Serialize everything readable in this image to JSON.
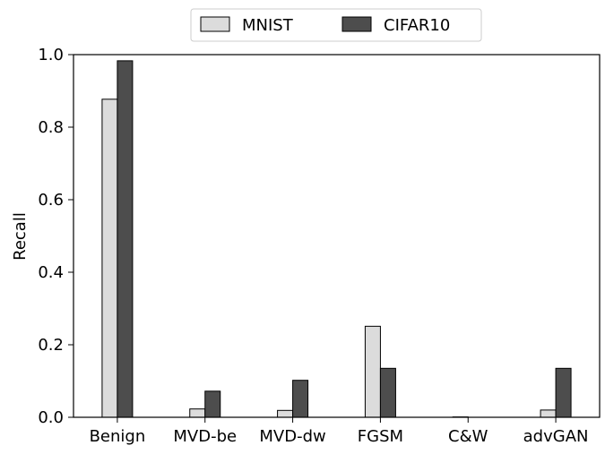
{
  "chart_data": {
    "type": "bar",
    "title": "",
    "xlabel": "",
    "ylabel": "Recall",
    "ylim": [
      0,
      1.0
    ],
    "yticks": [
      "0.0",
      "0.2",
      "0.4",
      "0.6",
      "0.8",
      "1.0"
    ],
    "grid": false,
    "legend_position": "top-center",
    "categories": [
      "Benign",
      "MVD-be",
      "MVD-dw",
      "FGSM",
      "C&W",
      "advGAN"
    ],
    "series": [
      {
        "name": "MNIST",
        "color": "#dcdcdc",
        "values": [
          0.877,
          0.023,
          0.019,
          0.251,
          0.001,
          0.02
        ]
      },
      {
        "name": "CIFAR10",
        "color": "#4d4d4d",
        "values": [
          0.983,
          0.072,
          0.102,
          0.135,
          0.0,
          0.135
        ]
      }
    ]
  }
}
